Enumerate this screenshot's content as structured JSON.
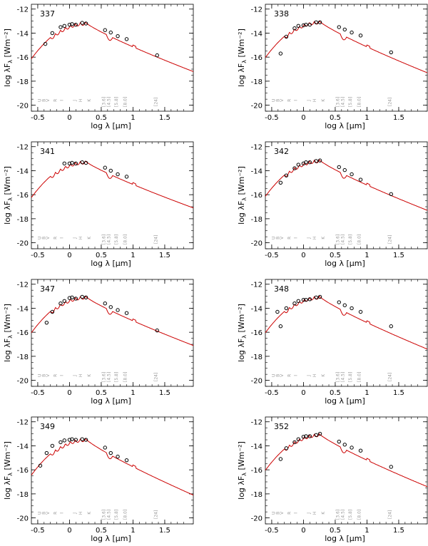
{
  "figure": {
    "axis_labels": {
      "xlabel": "log λ [μm]",
      "ylabel_main": "log λF",
      "ylabel_sub": "λ",
      "ylabel_unit": "[Wm⁻²]"
    },
    "band_labels": {
      "optical": [
        "U",
        "B",
        "V",
        "R",
        "I",
        "J",
        "H",
        "K"
      ],
      "irac": [
        "[3.6]",
        "[4.5]",
        "[5.8]",
        "[8.0]"
      ],
      "mips": "[24]"
    },
    "colors": {
      "model": "#cc0000",
      "photometry": "#000000",
      "band_labels": "#999999",
      "axes": "#000000"
    }
  },
  "chart_data": [
    {
      "type": "scatter",
      "title": "337",
      "xlim": [
        -0.6,
        1.95
      ],
      "ylim": [
        -20.5,
        -11.6
      ],
      "x_ticks": [
        -0.5,
        0,
        0.5,
        1,
        1.5
      ],
      "x_tick_labels": [
        "-0.5",
        "0",
        "0.5",
        "1",
        "1.5"
      ],
      "y_ticks": [
        -20,
        -18,
        -16,
        -14,
        -12
      ],
      "y_tick_labels": [
        "-20",
        "-18",
        "-16",
        "-14",
        "-12"
      ],
      "model_peak": -13.1,
      "model_red_tail": -17.2,
      "series": [
        {
          "x": [
            -0.38,
            -0.27,
            -0.14,
            -0.08,
            0.0,
            0.04,
            0.1,
            0.2,
            0.26,
            0.56,
            0.65,
            0.76,
            0.9,
            1.38
          ],
          "y": [
            -14.9,
            -14.0,
            -13.5,
            -13.4,
            -13.3,
            -13.25,
            -13.3,
            -13.15,
            -13.2,
            -13.75,
            -13.95,
            -14.25,
            -14.5,
            -15.85
          ]
        }
      ]
    },
    {
      "type": "scatter",
      "title": "338",
      "xlim": [
        -0.6,
        1.95
      ],
      "ylim": [
        -20.5,
        -11.6
      ],
      "x_ticks": [
        -0.5,
        0,
        0.5,
        1,
        1.5
      ],
      "x_tick_labels": [
        "-0.5",
        "0",
        "0.5",
        "1",
        "1.5"
      ],
      "y_ticks": [
        -20,
        -18,
        -16,
        -14,
        -12
      ],
      "y_tick_labels": [
        "-20",
        "-18",
        "-16",
        "-14",
        "-12"
      ],
      "model_peak": -13.0,
      "model_red_tail": -17.3,
      "series": [
        {
          "x": [
            -0.36,
            -0.27,
            -0.14,
            -0.08,
            0.0,
            0.04,
            0.1,
            0.2,
            0.26,
            0.56,
            0.65,
            0.76,
            0.9,
            1.38
          ],
          "y": [
            -15.7,
            -14.3,
            -13.6,
            -13.4,
            -13.35,
            -13.3,
            -13.3,
            -13.1,
            -13.1,
            -13.5,
            -13.7,
            -13.95,
            -14.2,
            -15.6
          ]
        }
      ]
    },
    {
      "type": "scatter",
      "title": "341",
      "xlim": [
        -0.6,
        1.95
      ],
      "ylim": [
        -20.5,
        -11.6
      ],
      "x_ticks": [
        -0.5,
        0,
        0.5,
        1,
        1.5
      ],
      "x_tick_labels": [
        "-0.5",
        "0",
        "0.5",
        "1",
        "1.5"
      ],
      "y_ticks": [
        -20,
        -18,
        -16,
        -14,
        -12
      ],
      "y_tick_labels": [
        "-20",
        "-18",
        "-16",
        "-14",
        "-12"
      ],
      "model_peak": -13.2,
      "model_red_tail": -17.1,
      "series": [
        {
          "x": [
            -0.08,
            0.0,
            0.04,
            0.1,
            0.2,
            0.26,
            0.56,
            0.65,
            0.76,
            0.9
          ],
          "y": [
            -13.4,
            -13.4,
            -13.35,
            -13.4,
            -13.3,
            -13.35,
            -13.75,
            -14.0,
            -14.3,
            -14.5
          ]
        }
      ]
    },
    {
      "type": "scatter",
      "title": "342",
      "xlim": [
        -0.6,
        1.95
      ],
      "ylim": [
        -20.5,
        -11.6
      ],
      "x_ticks": [
        -0.5,
        0,
        0.5,
        1,
        1.5
      ],
      "x_tick_labels": [
        "-0.5",
        "0",
        "0.5",
        "1",
        "1.5"
      ],
      "y_ticks": [
        -20,
        -18,
        -16,
        -14,
        -12
      ],
      "y_tick_labels": [
        "-20",
        "-18",
        "-16",
        "-14",
        "-12"
      ],
      "model_peak": -13.1,
      "model_red_tail": -17.3,
      "series": [
        {
          "x": [
            -0.36,
            -0.27,
            -0.14,
            -0.08,
            0.0,
            0.04,
            0.1,
            0.2,
            0.26,
            0.56,
            0.65,
            0.76,
            0.9,
            1.38
          ],
          "y": [
            -15.0,
            -14.4,
            -13.8,
            -13.5,
            -13.4,
            -13.3,
            -13.3,
            -13.2,
            -13.15,
            -13.7,
            -13.95,
            -14.3,
            -14.75,
            -15.95
          ]
        }
      ]
    },
    {
      "type": "scatter",
      "title": "347",
      "xlim": [
        -0.6,
        1.95
      ],
      "ylim": [
        -20.5,
        -11.6
      ],
      "x_ticks": [
        -0.5,
        0,
        0.5,
        1,
        1.5
      ],
      "x_tick_labels": [
        "-0.5",
        "0",
        "0.5",
        "1",
        "1.5"
      ],
      "y_ticks": [
        -20,
        -18,
        -16,
        -14,
        -12
      ],
      "y_tick_labels": [
        "-20",
        "-18",
        "-16",
        "-14",
        "-12"
      ],
      "model_peak": -13.0,
      "model_red_tail": -17.1,
      "series": [
        {
          "x": [
            -0.36,
            -0.27,
            -0.14,
            -0.08,
            0.0,
            0.04,
            0.1,
            0.2,
            0.26,
            0.56,
            0.65,
            0.76,
            0.9,
            1.38
          ],
          "y": [
            -15.2,
            -14.3,
            -13.6,
            -13.4,
            -13.15,
            -13.1,
            -13.2,
            -13.05,
            -13.1,
            -13.6,
            -13.9,
            -14.15,
            -14.4,
            -15.85
          ]
        }
      ]
    },
    {
      "type": "scatter",
      "title": "348",
      "xlim": [
        -0.6,
        1.95
      ],
      "ylim": [
        -20.5,
        -11.6
      ],
      "x_ticks": [
        -0.5,
        0,
        0.5,
        1,
        1.5
      ],
      "x_tick_labels": [
        "-0.5",
        "0",
        "0.5",
        "1",
        "1.5"
      ],
      "y_ticks": [
        -20,
        -18,
        -16,
        -14,
        -12
      ],
      "y_tick_labels": [
        "-20",
        "-18",
        "-16",
        "-14",
        "-12"
      ],
      "model_peak": -13.0,
      "model_red_tail": -17.4,
      "series": [
        {
          "x": [
            -0.41,
            -0.36,
            -0.27,
            -0.14,
            -0.08,
            0.0,
            0.04,
            0.1,
            0.2,
            0.26,
            0.56,
            0.65,
            0.76,
            0.9,
            1.38
          ],
          "y": [
            -14.3,
            -15.5,
            -14.0,
            -13.6,
            -13.4,
            -13.3,
            -13.3,
            -13.25,
            -13.1,
            -13.05,
            -13.5,
            -13.75,
            -14.0,
            -14.3,
            -15.5
          ]
        }
      ]
    },
    {
      "type": "scatter",
      "title": "349",
      "xlim": [
        -0.6,
        1.95
      ],
      "ylim": [
        -20.5,
        -11.6
      ],
      "x_ticks": [
        -0.5,
        0,
        0.5,
        1,
        1.5
      ],
      "x_tick_labels": [
        "-0.5",
        "0",
        "0.5",
        "1",
        "1.5"
      ],
      "y_ticks": [
        -20,
        -18,
        -16,
        -14,
        -12
      ],
      "y_tick_labels": [
        "-20",
        "-18",
        "-16",
        "-14",
        "-12"
      ],
      "model_peak": -13.4,
      "model_red_tail": -18.1,
      "series": [
        {
          "x": [
            -0.46,
            -0.36,
            -0.27,
            -0.14,
            -0.08,
            0.0,
            0.04,
            0.1,
            0.2,
            0.26,
            0.56,
            0.65,
            0.76,
            0.9
          ],
          "y": [
            -15.65,
            -14.6,
            -14.0,
            -13.7,
            -13.55,
            -13.5,
            -13.45,
            -13.5,
            -13.45,
            -13.5,
            -14.15,
            -14.6,
            -14.9,
            -15.2
          ]
        }
      ]
    },
    {
      "type": "scatter",
      "title": "352",
      "xlim": [
        -0.6,
        1.95
      ],
      "ylim": [
        -20.5,
        -11.6
      ],
      "x_ticks": [
        -0.5,
        0,
        0.5,
        1,
        1.5
      ],
      "x_tick_labels": [
        "-0.5",
        "0",
        "0.5",
        "1",
        "1.5"
      ],
      "y_ticks": [
        -20,
        -18,
        -16,
        -14,
        -12
      ],
      "y_tick_labels": [
        "-20",
        "-18",
        "-16",
        "-14",
        "-12"
      ],
      "model_peak": -13.0,
      "model_red_tail": -17.4,
      "series": [
        {
          "x": [
            -0.36,
            -0.27,
            -0.14,
            -0.08,
            0.0,
            0.04,
            0.1,
            0.2,
            0.26,
            0.56,
            0.65,
            0.76,
            0.9,
            1.38
          ],
          "y": [
            -15.1,
            -14.2,
            -13.7,
            -13.45,
            -13.25,
            -13.2,
            -13.2,
            -13.1,
            -13.0,
            -13.65,
            -13.9,
            -14.15,
            -14.4,
            -15.75
          ]
        }
      ]
    }
  ]
}
